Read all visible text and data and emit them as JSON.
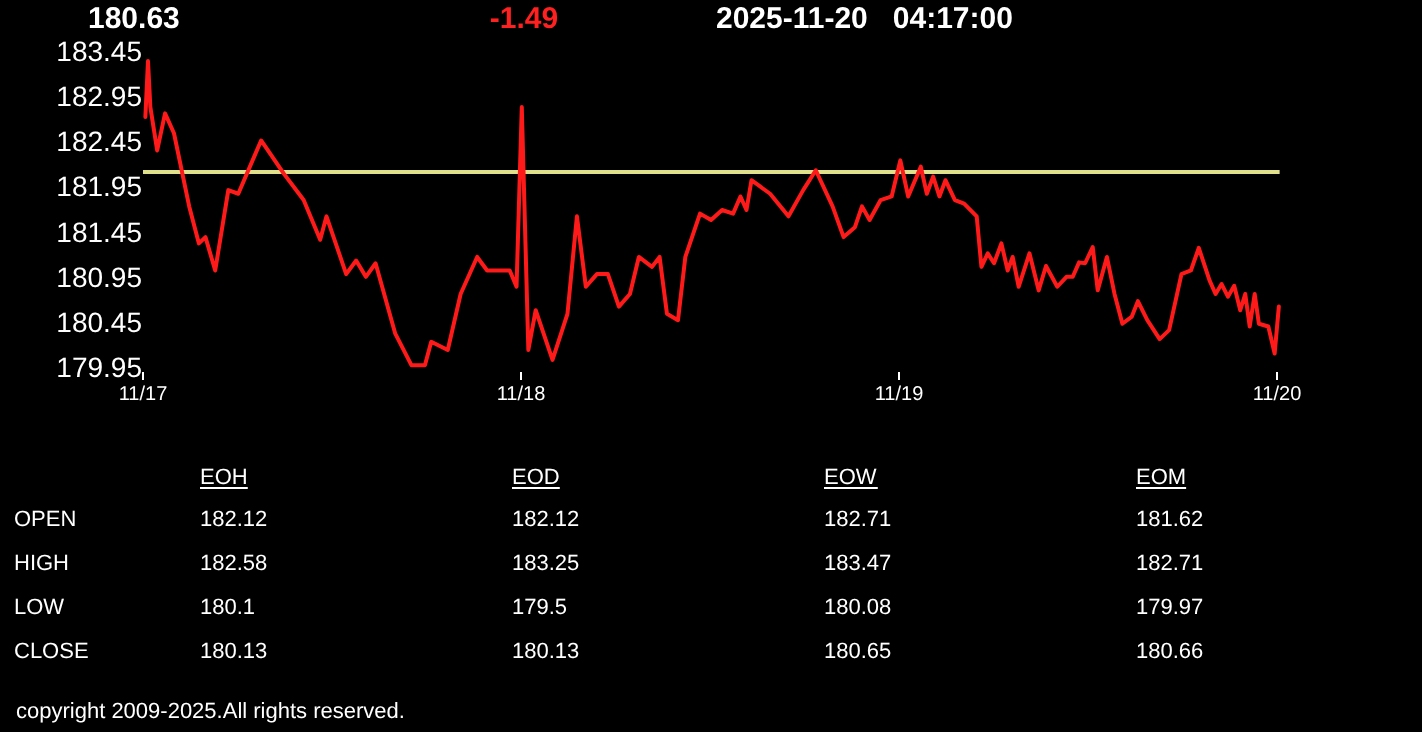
{
  "chart_data": [
    {
      "type": "line",
      "title": "180.63",
      "subtitle": "-1.49",
      "annotations": [
        "2025-11-20   04:17:00",
        "copyright 2009-2025.All rights reserved."
      ],
      "x": [
        "2025-11-17T00:09",
        "2025-11-17T00:19",
        "2025-11-17T00:28",
        "2025-11-17T00:54",
        "2025-11-17T01:24",
        "2025-11-17T01:58",
        "2025-11-17T02:56",
        "2025-11-17T03:33",
        "2025-11-17T03:58",
        "2025-11-17T04:35",
        "2025-11-17T05:25",
        "2025-11-17T06:03",
        "2025-11-17T07:30",
        "2025-11-17T08:57",
        "2025-11-17T10:12",
        "2025-11-17T11:15",
        "2025-11-17T11:39",
        "2025-11-17T12:54",
        "2025-11-17T13:32",
        "2025-11-17T14:09",
        "2025-11-17T14:46",
        "2025-11-17T16:01",
        "2025-11-17T17:03",
        "2025-11-17T17:54",
        "2025-11-17T18:18",
        "2025-11-17T19:21",
        "2025-11-17T20:10",
        "2025-11-17T21:13",
        "2025-11-17T21:51",
        "2025-11-17T23:17",
        "2025-11-17T23:43",
        "2025-11-18T00:03",
        "2025-11-18T00:28",
        "2025-11-18T00:56",
        "2025-11-18T02:00",
        "2025-11-18T02:57",
        "2025-11-18T03:33",
        "2025-11-18T04:07",
        "2025-11-18T04:49",
        "2025-11-18T05:31",
        "2025-11-18T06:13",
        "2025-11-18T06:55",
        "2025-11-18T07:29",
        "2025-11-18T08:19",
        "2025-11-18T08:48",
        "2025-11-18T09:16",
        "2025-11-18T09:58",
        "2025-11-18T10:26",
        "2025-11-18T11:22",
        "2025-11-18T12:04",
        "2025-11-18T12:46",
        "2025-11-18T13:28",
        "2025-11-18T13:56",
        "2025-11-18T14:19",
        "2025-11-18T14:38",
        "2025-11-18T15:49",
        "2025-11-18T16:59",
        "2025-11-18T17:55",
        "2025-11-18T18:43",
        "2025-11-18T19:47",
        "2025-11-18T20:29",
        "2025-11-18T21:12",
        "2025-11-18T21:39",
        "2025-11-18T22:08",
        "2025-11-18T22:50",
        "2025-11-18T23:32",
        "2025-11-19T00:05",
        "2025-11-19T00:35",
        "2025-11-19T01:23",
        "2025-11-19T01:46",
        "2025-11-19T02:10",
        "2025-11-19T02:34",
        "2025-11-19T02:57",
        "2025-11-19T03:33",
        "2025-11-19T04:08",
        "2025-11-19T04:56",
        "2025-11-19T05:14",
        "2025-11-19T05:38",
        "2025-11-19T06:02",
        "2025-11-19T06:30",
        "2025-11-19T06:54",
        "2025-11-19T07:13",
        "2025-11-19T07:36",
        "2025-11-19T08:17",
        "2025-11-19T08:52",
        "2025-11-19T09:20",
        "2025-11-19T10:03",
        "2025-11-19T10:38",
        "2025-11-19T11:02",
        "2025-11-19T11:26",
        "2025-11-19T11:49",
        "2025-11-19T12:18",
        "2025-11-19T12:37",
        "2025-11-19T13:12",
        "2025-11-19T13:41",
        "2025-11-19T14:11",
        "2025-11-19T14:47",
        "2025-11-19T15:10",
        "2025-11-19T15:46",
        "2025-11-19T16:33",
        "2025-11-19T17:09",
        "2025-11-19T17:56",
        "2025-11-19T18:32",
        "2025-11-19T19:02",
        "2025-11-19T19:43",
        "2025-11-19T20:06",
        "2025-11-19T20:29",
        "2025-11-19T20:53",
        "2025-11-19T21:17",
        "2025-11-19T21:40",
        "2025-11-19T21:59",
        "2025-11-19T22:16",
        "2025-11-19T22:35",
        "2025-11-19T22:51",
        "2025-11-19T23:27",
        "2025-11-19T23:51",
        "2025-11-20T00:07"
      ],
      "series": [
        {
          "color": "#ff1a1a",
          "values": [
            182.73,
            183.35,
            182.84,
            182.36,
            182.77,
            182.55,
            181.74,
            181.33,
            181.4,
            181.03,
            181.92,
            181.88,
            182.47,
            182.1,
            181.81,
            181.37,
            181.63,
            180.99,
            181.14,
            180.96,
            181.11,
            180.33,
            179.98,
            179.98,
            180.24,
            180.15,
            180.77,
            181.18,
            181.03,
            181.03,
            180.85,
            182.84,
            180.15,
            180.59,
            180.04,
            180.55,
            181.63,
            180.85,
            180.99,
            180.99,
            180.63,
            180.77,
            181.18,
            181.07,
            181.18,
            180.55,
            180.48,
            181.18,
            181.66,
            181.59,
            181.7,
            181.66,
            181.85,
            181.7,
            182.03,
            181.88,
            181.63,
            181.92,
            182.14,
            181.74,
            181.4,
            181.51,
            181.74,
            181.59,
            181.81,
            181.85,
            182.25,
            181.85,
            182.18,
            181.88,
            182.07,
            181.85,
            182.03,
            181.81,
            181.77,
            181.63,
            181.07,
            181.22,
            181.11,
            181.33,
            181.03,
            181.18,
            180.85,
            181.22,
            180.81,
            181.08,
            180.85,
            180.96,
            180.96,
            181.12,
            181.11,
            181.29,
            180.81,
            181.18,
            180.77,
            180.44,
            180.52,
            180.69,
            180.48,
            180.27,
            180.37,
            180.99,
            181.03,
            181.28,
            180.92,
            180.77,
            180.88,
            180.74,
            180.86,
            180.59,
            180.77,
            180.41,
            180.77,
            180.44,
            180.41,
            180.11,
            180.63
          ]
        }
      ],
      "xlim": [
        "2025-11-17T00:00",
        "2025-11-20T00:10"
      ],
      "xticks": [
        {
          "value": "2025-11-17",
          "label": "11/17"
        },
        {
          "value": "2025-11-18",
          "label": "11/18"
        },
        {
          "value": "2025-11-19",
          "label": "11/19"
        },
        {
          "value": "2025-11-20",
          "label": "11/20"
        }
      ],
      "ylim": [
        179.95,
        183.45
      ],
      "yticks": [
        179.95,
        180.45,
        180.95,
        181.45,
        181.95,
        182.45,
        182.95,
        183.45
      ],
      "ref_lines": [
        {
          "axis": "y",
          "value": 182.12,
          "color": "#e0e08a"
        }
      ],
      "grid": false
    },
    {
      "type": "other",
      "categories": [
        "EOH",
        "EOD",
        "EOW",
        "EOM"
      ],
      "y_categories": [
        "OPEN",
        "HIGH",
        "LOW",
        "CLOSE"
      ],
      "cell_labels": [
        [
          "182.12",
          "182.12",
          "182.71",
          "181.62"
        ],
        [
          "182.58",
          "183.25",
          "183.47",
          "182.71"
        ],
        [
          "180.1",
          "179.5",
          "180.08",
          "179.97"
        ],
        [
          "180.13",
          "180.13",
          "180.65",
          "180.66"
        ]
      ],
      "data_labels": true
    }
  ]
}
